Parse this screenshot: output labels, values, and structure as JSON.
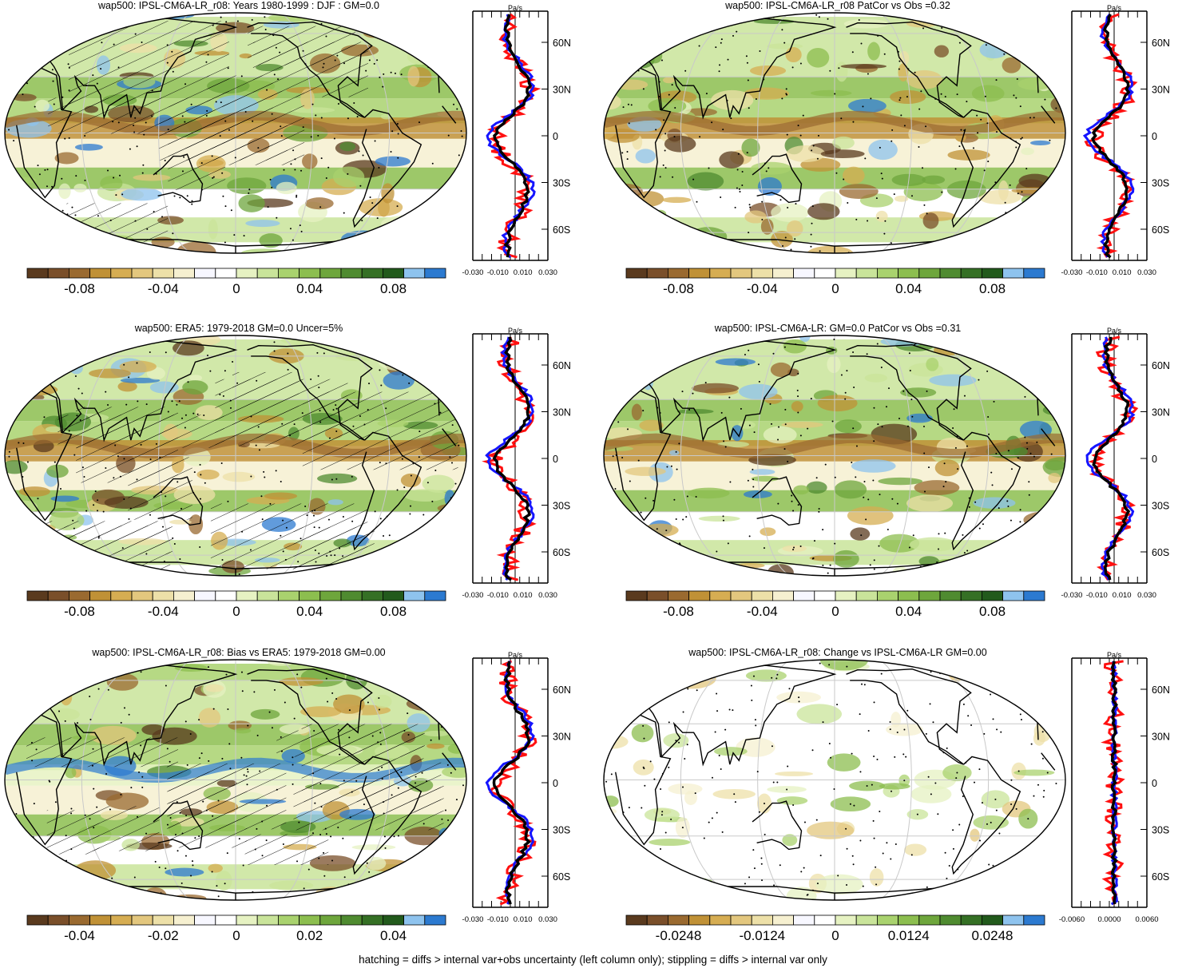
{
  "variable": "wap500",
  "footer": "hatching = diffs > internal var+obs uncertainty (left column only); stippling = diffs > internal var only",
  "palette": [
    "#5a3a1e",
    "#7a4f2a",
    "#9a6a30",
    "#c09136",
    "#d6ad52",
    "#e3c77e",
    "#ede0a8",
    "#f6f0d0",
    "#f7f7ff",
    "#ffffff",
    "#e6f2c2",
    "#c9e49a",
    "#a9d26e",
    "#8cbe4f",
    "#6ea63c",
    "#4f8b30",
    "#357025",
    "#225a1c",
    "#8ec3ee",
    "#2c7ad0"
  ],
  "colors": {
    "blue": "#1515ff",
    "red": "#ff1010",
    "black": "#000000",
    "ocean_line": "#000000",
    "grid": "#c9c9c9"
  },
  "panels": [
    {
      "id": "model",
      "title": "wap500: IPSL-CM6A-LR_r08: Years 1980-1999 : DJF : GM=0.0",
      "colorbar_ticks": [
        "-0.08",
        "-0.04",
        "0",
        "0.04",
        "0.08"
      ],
      "profile_unit": "Pa/s",
      "profile_ticks": [
        "-0.030",
        "-0.010",
        "0.010",
        "0.030"
      ],
      "lat_ticks": [
        "60N",
        "30N",
        "0",
        "30S",
        "60S"
      ],
      "hatching": true
    },
    {
      "id": "model-patcor",
      "title": "wap500: IPSL-CM6A-LR_r08 PatCor vs Obs =0.32",
      "colorbar_ticks": [
        "-0.08",
        "-0.04",
        "0",
        "0.04",
        "0.08"
      ],
      "profile_unit": "Pa/s",
      "profile_ticks": [
        "-0.030",
        "-0.010",
        "0.010",
        "0.030"
      ],
      "lat_ticks": [
        "60N",
        "30N",
        "0",
        "30S",
        "60S"
      ],
      "hatching": false
    },
    {
      "id": "obs",
      "title": "wap500: ERA5: 1979-2018 GM=0.0 Uncer=5%",
      "colorbar_ticks": [
        "-0.08",
        "-0.04",
        "0",
        "0.04",
        "0.08"
      ],
      "profile_unit": "Pa/s",
      "profile_ticks": [
        "-0.030",
        "-0.010",
        "0.010",
        "0.030"
      ],
      "lat_ticks": [
        "60N",
        "30N",
        "0",
        "30S",
        "60S"
      ],
      "hatching": true
    },
    {
      "id": "ref",
      "title": "wap500: IPSL-CM6A-LR: GM=0.0 PatCor vs Obs =0.31",
      "colorbar_ticks": [
        "-0.08",
        "-0.04",
        "0",
        "0.04",
        "0.08"
      ],
      "profile_unit": "Pa/s",
      "profile_ticks": [
        "-0.030",
        "-0.010",
        "0.010",
        "0.030"
      ],
      "lat_ticks": [
        "60N",
        "30N",
        "0",
        "30S",
        "60S"
      ],
      "hatching": false
    },
    {
      "id": "bias",
      "title": "wap500: IPSL-CM6A-LR_r08: Bias vs ERA5: 1979-2018 GM=0.00",
      "colorbar_ticks": [
        "-0.04",
        "-0.02",
        "0",
        "0.02",
        "0.04"
      ],
      "profile_unit": "Pa/s",
      "profile_ticks": [
        "-0.030",
        "-0.010",
        "0.010",
        "0.030"
      ],
      "lat_ticks": [
        "60N",
        "30N",
        "0",
        "30S",
        "60S"
      ],
      "hatching": true
    },
    {
      "id": "change",
      "title": "wap500: IPSL-CM6A-LR_r08: Change vs IPSL-CM6A-LR GM=0.00",
      "colorbar_ticks": [
        "-0.0248",
        "-0.0124",
        "0",
        "0.0124",
        "0.0248"
      ],
      "profile_unit": "Pa/s",
      "profile_ticks": [
        "-0.0060",
        "0.0000",
        "0.0060"
      ],
      "lat_ticks": [
        "60N",
        "30N",
        "0",
        "30S",
        "60S"
      ],
      "hatching": false
    }
  ]
}
